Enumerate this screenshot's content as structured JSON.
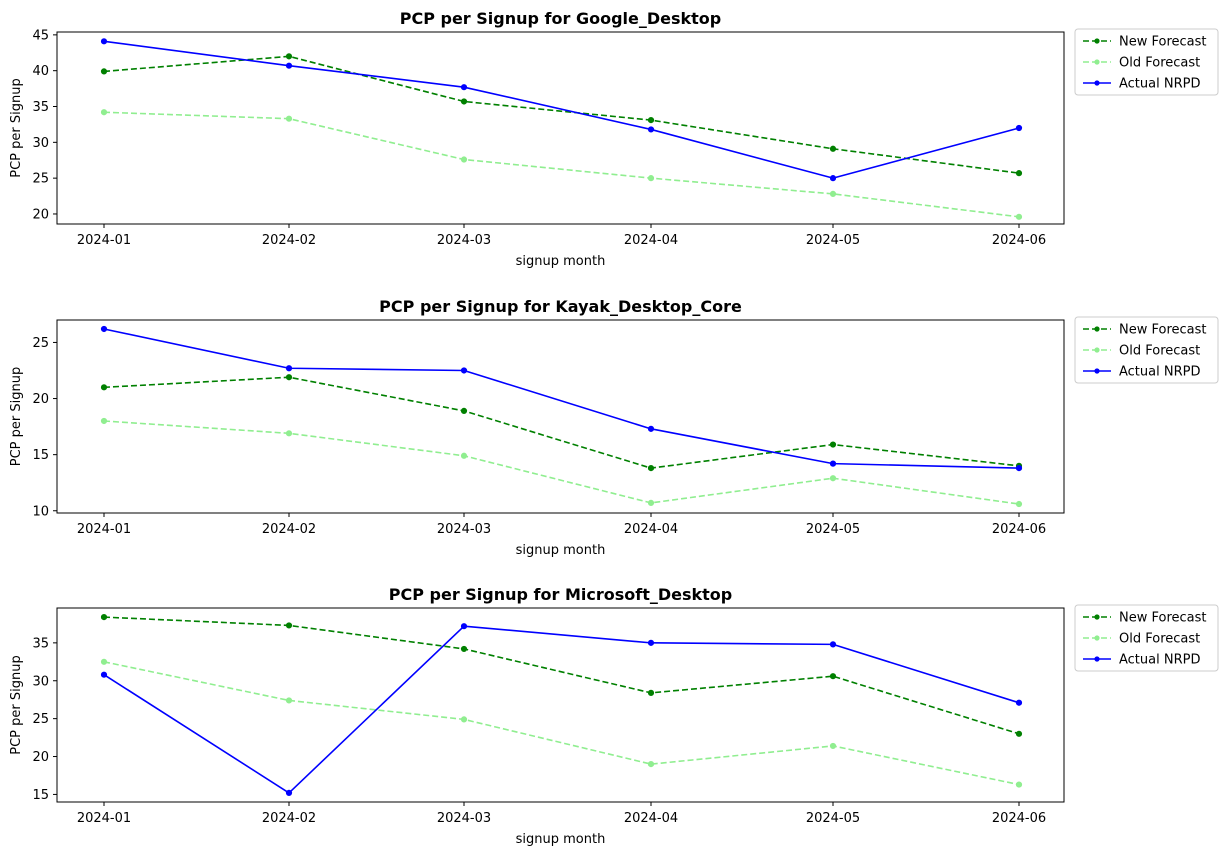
{
  "chart_data": [
    {
      "type": "line",
      "title": "PCP per Signup for Google_Desktop",
      "xlabel": "signup month",
      "ylabel": "PCP per Signup",
      "x": [
        "2024-01",
        "2024-02",
        "2024-03",
        "2024-04",
        "2024-05",
        "2024-06"
      ],
      "ylim": [
        18.6,
        45.4
      ],
      "yticks": [
        20,
        25,
        30,
        35,
        40,
        45
      ],
      "grid": false,
      "legend_position": "outside-right",
      "series": [
        {
          "name": "New Forecast",
          "color": "#008000",
          "style": "dashed",
          "marker": "dot",
          "values": [
            39.9,
            42.0,
            35.7,
            33.1,
            29.1,
            25.7
          ]
        },
        {
          "name": "Old Forecast",
          "color": "#90ee90",
          "style": "dashed",
          "marker": "dot",
          "values": [
            34.2,
            33.3,
            27.6,
            25.0,
            22.8,
            19.6
          ]
        },
        {
          "name": "Actual NRPD",
          "color": "#0000ff",
          "style": "solid",
          "marker": "dot",
          "values": [
            44.1,
            40.7,
            37.7,
            31.8,
            25.0,
            32.0
          ]
        }
      ]
    },
    {
      "type": "line",
      "title": "PCP per Signup for Kayak_Desktop_Core",
      "xlabel": "signup month",
      "ylabel": "PCP per Signup",
      "x": [
        "2024-01",
        "2024-02",
        "2024-03",
        "2024-04",
        "2024-05",
        "2024-06"
      ],
      "ylim": [
        9.8,
        27.0
      ],
      "yticks": [
        10,
        15,
        20,
        25
      ],
      "grid": false,
      "legend_position": "outside-right",
      "series": [
        {
          "name": "New Forecast",
          "color": "#008000",
          "style": "dashed",
          "marker": "dot",
          "values": [
            21.0,
            21.9,
            18.9,
            13.8,
            15.9,
            14.0
          ]
        },
        {
          "name": "Old Forecast",
          "color": "#90ee90",
          "style": "dashed",
          "marker": "dot",
          "values": [
            18.0,
            16.9,
            14.9,
            10.7,
            12.9,
            10.6
          ]
        },
        {
          "name": "Actual NRPD",
          "color": "#0000ff",
          "style": "solid",
          "marker": "dot",
          "values": [
            26.2,
            22.7,
            22.5,
            17.3,
            14.2,
            13.8
          ]
        }
      ]
    },
    {
      "type": "line",
      "title": "PCP per Signup for Microsoft_Desktop",
      "xlabel": "signup month",
      "ylabel": "PCP per Signup",
      "x": [
        "2024-01",
        "2024-02",
        "2024-03",
        "2024-04",
        "2024-05",
        "2024-06"
      ],
      "ylim": [
        14.0,
        39.6
      ],
      "yticks": [
        15,
        20,
        25,
        30,
        35
      ],
      "grid": false,
      "legend_position": "outside-right",
      "series": [
        {
          "name": "New Forecast",
          "color": "#008000",
          "style": "dashed",
          "marker": "dot",
          "values": [
            38.4,
            37.3,
            34.2,
            28.4,
            30.6,
            23.0
          ]
        },
        {
          "name": "Old Forecast",
          "color": "#90ee90",
          "style": "dashed",
          "marker": "dot",
          "values": [
            32.5,
            27.4,
            24.9,
            19.0,
            21.4,
            16.3
          ]
        },
        {
          "name": "Actual NRPD",
          "color": "#0000ff",
          "style": "solid",
          "marker": "dot",
          "values": [
            30.8,
            15.2,
            37.2,
            35.0,
            34.8,
            27.1
          ]
        }
      ]
    }
  ]
}
